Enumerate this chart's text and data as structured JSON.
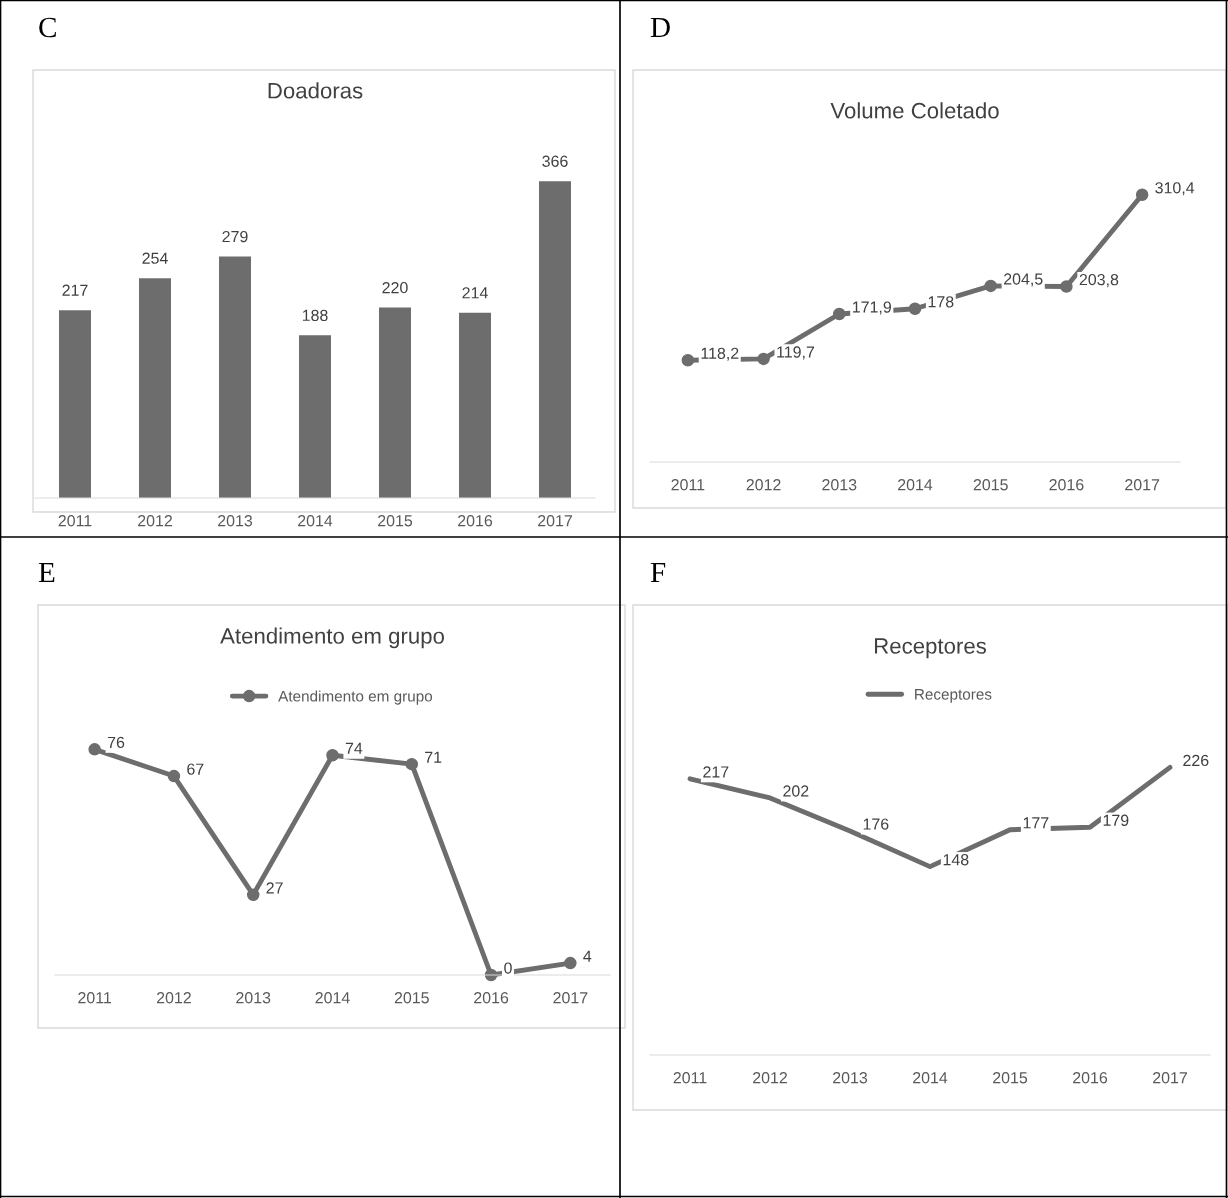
{
  "chart_data": [
    {
      "type": "bar",
      "title": "Doadoras",
      "annotations": [
        "C"
      ],
      "categories": [
        "2011",
        "2012",
        "2013",
        "2014",
        "2015",
        "2016",
        "2017"
      ],
      "series": [
        {
          "color": "#6d6d6d",
          "values": [
            217,
            254,
            279,
            188,
            220,
            214,
            366
          ]
        }
      ],
      "data_labels": true,
      "grid": false,
      "legend": false
    },
    {
      "type": "line",
      "title": "Volume Coletado",
      "annotations": [
        "D"
      ],
      "categories": [
        "2011",
        "2012",
        "2013",
        "2014",
        "2015",
        "2016",
        "2017"
      ],
      "series": [
        {
          "color": "#6d6d6d",
          "values": [
            118.2,
            119.7,
            171.9,
            178,
            204.5,
            203.8,
            310.4
          ],
          "value_labels": [
            "118,2",
            "119,7",
            "171,9",
            "178",
            "204,5",
            "203,8",
            "310,4"
          ]
        }
      ],
      "marker": "circle",
      "line_style": "solid",
      "grid": false,
      "legend": false
    },
    {
      "type": "line",
      "title": "Atendimento em grupo",
      "annotations": [
        "E"
      ],
      "categories": [
        "2011",
        "2012",
        "2013",
        "2014",
        "2015",
        "2016",
        "2017"
      ],
      "series": [
        {
          "name": "Atendimento em grupo",
          "color": "#6d6d6d",
          "values": [
            76,
            67,
            27,
            74,
            71,
            0,
            4
          ]
        }
      ],
      "data_labels": true,
      "marker": "circle",
      "line_style": "solid",
      "grid": false,
      "legend": "top"
    },
    {
      "type": "line",
      "title": "Receptores",
      "annotations": [
        "F"
      ],
      "categories": [
        "2011",
        "2012",
        "2013",
        "2014",
        "2015",
        "2016",
        "2017"
      ],
      "series": [
        {
          "name": "Receptores",
          "color": "#6d6d6d",
          "values": [
            217,
            202,
            176,
            148,
            177,
            179,
            226
          ]
        }
      ],
      "data_labels": true,
      "marker": "none",
      "line_style": "solid",
      "grid": false,
      "legend": "top"
    }
  ]
}
